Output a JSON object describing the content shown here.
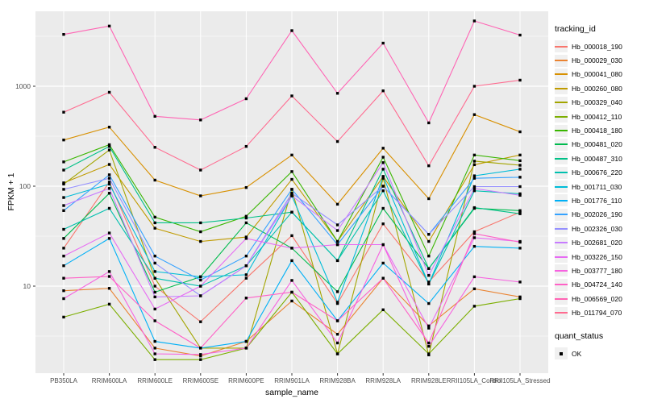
{
  "figure": {
    "background": "#FFFFFF",
    "panel_background": "#EBEBEB",
    "grid_color": "#FFFFFF",
    "tick_color": "#333333",
    "tick_label_color": "#4D4D4D",
    "point_color": "#000000",
    "point_shape": "filled-square"
  },
  "chart_data": {
    "type": "line",
    "title": "",
    "xlabel": "sample_name",
    "ylabel": "FPKM + 1",
    "y_scale": "log10",
    "y_ticks": [
      10,
      100,
      1000
    ],
    "y_tick_labels": [
      "10",
      "100",
      "1000"
    ],
    "y_minor_ticks": [
      3.162,
      31.62,
      316.2,
      3162
    ],
    "ylim": [
      1.35,
      5600
    ],
    "grid": "on",
    "legend_position": "right",
    "categories": [
      "PB350LA",
      "RRIM600LA",
      "RRIM600LE",
      "RRIM600SE",
      "RRIM600PE",
      "RRIM901LA",
      "RRIM928BA",
      "RRIM928LA",
      "RRIM928LE",
      "RRII105LA_Control",
      "RRII105LA_Stressed"
    ],
    "legend": {
      "title": "tracking_id"
    },
    "legend2": {
      "title": "quant_status",
      "items": [
        "OK"
      ],
      "key_shape": "black-square"
    },
    "series": [
      {
        "name": "Hb_000018_190",
        "color": "#F8766D",
        "values": [
          24,
          110,
          10,
          4.4,
          12,
          32,
          6.7,
          42,
          11,
          35,
          55
        ]
      },
      {
        "name": "Hb_000029_030",
        "color": "#EA8331",
        "values": [
          9,
          9.5,
          2.4,
          2.0,
          2.8,
          7.1,
          3.3,
          12,
          4,
          9.4,
          7.8
        ]
      },
      {
        "name": "Hb_000041_080",
        "color": "#D89000",
        "values": [
          290,
          390,
          115,
          80,
          97,
          205,
          66,
          240,
          75,
          520,
          350
        ]
      },
      {
        "name": "Hb_000260_080",
        "color": "#C09B00",
        "values": [
          108,
          165,
          38,
          28,
          31,
          117,
          28,
          125,
          28,
          164,
          205
        ]
      },
      {
        "name": "Hb_000329_040",
        "color": "#A3A500",
        "values": [
          105,
          230,
          12,
          2.4,
          2.4,
          93,
          2.1,
          120,
          2.05,
          178,
          162
        ]
      },
      {
        "name": "Hb_000412_110",
        "color": "#7CAE00",
        "values": [
          4.9,
          6.6,
          1.84,
          1.84,
          2.4,
          8.7,
          2.1,
          5.8,
          2.1,
          6.3,
          7.5
        ]
      },
      {
        "name": "Hb_000418_180",
        "color": "#39B600",
        "values": [
          175,
          260,
          49,
          35,
          50,
          140,
          28,
          195,
          20,
          205,
          180
        ]
      },
      {
        "name": "Hb_000481_020",
        "color": "#00BB4E",
        "values": [
          30,
          85,
          8.7,
          12.4,
          43,
          24,
          8.8,
          60,
          15,
          60,
          57
        ]
      },
      {
        "name": "Hb_000487_310",
        "color": "#00C087",
        "values": [
          145,
          250,
          43,
          43,
          48,
          55,
          18,
          148,
          15,
          61,
          53
        ]
      },
      {
        "name": "Hb_000676_220",
        "color": "#00C0AF",
        "values": [
          37,
          60,
          12,
          10,
          16,
          55,
          18,
          90,
          10.5,
          90,
          84
        ]
      },
      {
        "name": "Hb_001711_030",
        "color": "#00BCD8",
        "values": [
          77,
          105,
          14,
          12.4,
          13,
          80,
          6.9,
          125,
          10.5,
          127,
          148
        ]
      },
      {
        "name": "Hb_001776_110",
        "color": "#00B0F6",
        "values": [
          16,
          30,
          2.8,
          2.4,
          2.8,
          18,
          4.5,
          17,
          6.7,
          25,
          24
        ]
      },
      {
        "name": "Hb_002026_190",
        "color": "#35A2FF",
        "values": [
          57,
          130,
          20,
          11.5,
          20,
          93,
          26,
          100,
          33,
          120,
          123
        ]
      },
      {
        "name": "Hb_002326_030",
        "color": "#9590FF",
        "values": [
          93,
          120,
          17,
          8,
          16,
          85,
          41,
          100,
          33,
          99,
          99
        ]
      },
      {
        "name": "Hb_002681_020",
        "color": "#C77CFF",
        "values": [
          64,
          95,
          7.8,
          8,
          16,
          80,
          36,
          172,
          12.8,
          95,
          81
        ]
      },
      {
        "name": "Hb_003226_150",
        "color": "#E76BF3",
        "values": [
          20,
          34,
          5.9,
          10,
          30,
          24,
          26,
          26,
          3.8,
          30.5,
          28
        ]
      },
      {
        "name": "Hb_003777_180",
        "color": "#F763E0",
        "values": [
          7.5,
          14,
          2.1,
          2.07,
          2.4,
          11.4,
          2.7,
          26,
          2.5,
          12.4,
          11
        ]
      },
      {
        "name": "Hb_004724_140",
        "color": "#FF61C7",
        "values": [
          12,
          12.5,
          4.5,
          2.4,
          7.6,
          8.7,
          4.5,
          12,
          2.7,
          33.5,
          27.5
        ]
      },
      {
        "name": "Hb_006569_020",
        "color": "#FF64B4",
        "values": [
          3300,
          4000,
          500,
          460,
          750,
          3600,
          850,
          2700,
          430,
          4500,
          3250
        ]
      },
      {
        "name": "Hb_011794_070",
        "color": "#FF6B90",
        "values": [
          550,
          870,
          245,
          145,
          250,
          800,
          280,
          900,
          160,
          1000,
          1150
        ]
      }
    ]
  }
}
